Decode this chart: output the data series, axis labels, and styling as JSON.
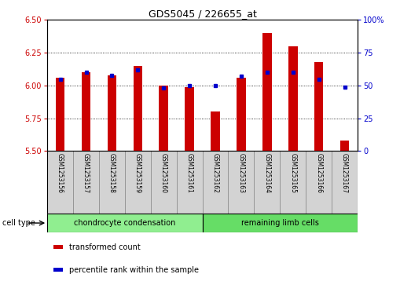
{
  "title": "GDS5045 / 226655_at",
  "samples": [
    "GSM1253156",
    "GSM1253157",
    "GSM1253158",
    "GSM1253159",
    "GSM1253160",
    "GSM1253161",
    "GSM1253162",
    "GSM1253163",
    "GSM1253164",
    "GSM1253165",
    "GSM1253166",
    "GSM1253167"
  ],
  "transformed_count": [
    6.06,
    6.1,
    6.08,
    6.15,
    6.0,
    5.99,
    5.8,
    6.06,
    6.4,
    6.3,
    6.18,
    5.58
  ],
  "percentile_rank": [
    55,
    60,
    58,
    62,
    48,
    50,
    50,
    57,
    60,
    60,
    55,
    49
  ],
  "ylim_left": [
    5.5,
    6.5
  ],
  "ylim_right": [
    0,
    100
  ],
  "yticks_left": [
    5.5,
    5.75,
    6.0,
    6.25,
    6.5
  ],
  "yticks_right": [
    0,
    25,
    50,
    75,
    100
  ],
  "bar_color": "#cc0000",
  "square_color": "#0000cc",
  "bar_bottom": 5.5,
  "cell_type_groups": [
    {
      "label": "chondrocyte condensation",
      "count": 6,
      "color": "#90ee90"
    },
    {
      "label": "remaining limb cells",
      "count": 6,
      "color": "#66dd66"
    }
  ],
  "cell_type_label": "cell type",
  "legend_red": "transformed count",
  "legend_blue": "percentile rank within the sample",
  "bar_width": 0.35,
  "sample_box_color": "#d3d3d3",
  "spine_color": "#888888"
}
